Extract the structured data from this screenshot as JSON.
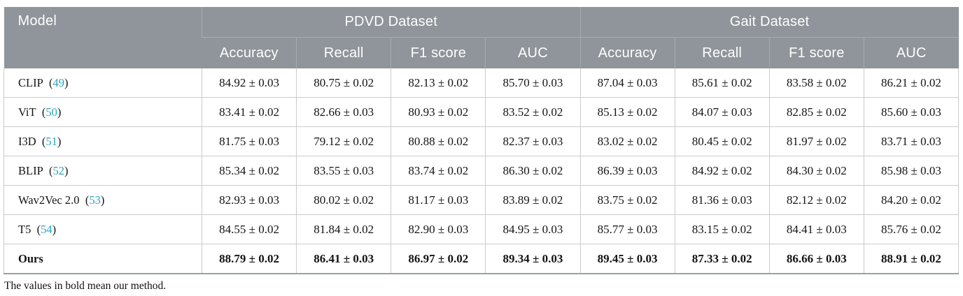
{
  "table": {
    "header": {
      "model_label": "Model",
      "groups": [
        {
          "label": "PDVD Dataset"
        },
        {
          "label": "Gait Dataset"
        }
      ],
      "metrics": [
        "Accuracy",
        "Recall",
        "F1 score",
        "AUC"
      ]
    },
    "rows": [
      {
        "model": "CLIP",
        "cite": "49",
        "bold": false,
        "pdvd": {
          "accuracy": "84.92 ± 0.03",
          "recall": "80.75 ± 0.02",
          "f1": "82.13 ± 0.02",
          "auc": "85.70 ± 0.03"
        },
        "gait": {
          "accuracy": "87.04 ± 0.03",
          "recall": "85.61 ± 0.02",
          "f1": "83.58 ± 0.02",
          "auc": "86.21 ± 0.02"
        }
      },
      {
        "model": "ViT",
        "cite": "50",
        "bold": false,
        "pdvd": {
          "accuracy": "83.41 ± 0.02",
          "recall": "82.66 ± 0.03",
          "f1": "80.93 ± 0.02",
          "auc": "83.52 ± 0.02"
        },
        "gait": {
          "accuracy": "85.13 ± 0.02",
          "recall": "84.07 ± 0.03",
          "f1": "82.85 ± 0.02",
          "auc": "85.60 ± 0.03"
        }
      },
      {
        "model": "I3D",
        "cite": "51",
        "bold": false,
        "pdvd": {
          "accuracy": "81.75 ± 0.03",
          "recall": "79.12 ± 0.02",
          "f1": "80.88 ± 0.02",
          "auc": "82.37 ± 0.03"
        },
        "gait": {
          "accuracy": "83.02 ± 0.02",
          "recall": "80.45 ± 0.02",
          "f1": "81.97 ± 0.02",
          "auc": "83.71 ± 0.03"
        }
      },
      {
        "model": "BLIP",
        "cite": "52",
        "bold": false,
        "pdvd": {
          "accuracy": "85.34 ± 0.02",
          "recall": "83.55 ± 0.03",
          "f1": "83.74 ± 0.02",
          "auc": "86.30 ± 0.02"
        },
        "gait": {
          "accuracy": "86.39 ± 0.03",
          "recall": "84.92 ± 0.02",
          "f1": "84.30 ± 0.02",
          "auc": "85.98 ± 0.03"
        }
      },
      {
        "model": "Wav2Vec 2.0",
        "cite": "53",
        "bold": false,
        "pdvd": {
          "accuracy": "82.93 ± 0.03",
          "recall": "80.02 ± 0.02",
          "f1": "81.17 ± 0.03",
          "auc": "83.89 ± 0.02"
        },
        "gait": {
          "accuracy": "83.75 ± 0.02",
          "recall": "81.36 ± 0.03",
          "f1": "82.12 ± 0.02",
          "auc": "84.20 ± 0.02"
        }
      },
      {
        "model": "T5",
        "cite": "54",
        "bold": false,
        "pdvd": {
          "accuracy": "84.55 ± 0.02",
          "recall": "81.84 ± 0.02",
          "f1": "82.90 ± 0.03",
          "auc": "84.95 ± 0.03"
        },
        "gait": {
          "accuracy": "85.77 ± 0.03",
          "recall": "83.15 ± 0.02",
          "f1": "84.41 ± 0.03",
          "auc": "85.76 ± 0.02"
        }
      },
      {
        "model": "Ours",
        "cite": null,
        "bold": true,
        "pdvd": {
          "accuracy": "88.79 ± 0.02",
          "recall": "86.41 ± 0.03",
          "f1": "86.97 ± 0.02",
          "auc": "89.34 ± 0.03"
        },
        "gait": {
          "accuracy": "89.45 ± 0.03",
          "recall": "87.33 ± 0.02",
          "f1": "86.66 ± 0.03",
          "auc": "88.91 ± 0.02"
        }
      }
    ],
    "footnote": "The values in bold mean our method."
  },
  "colors": {
    "header_bg": "#8f959a",
    "header_text": "#ffffff",
    "cell_border": "#c9cbcd",
    "citation_link": "#29a4bd",
    "body_text": "#141414"
  }
}
